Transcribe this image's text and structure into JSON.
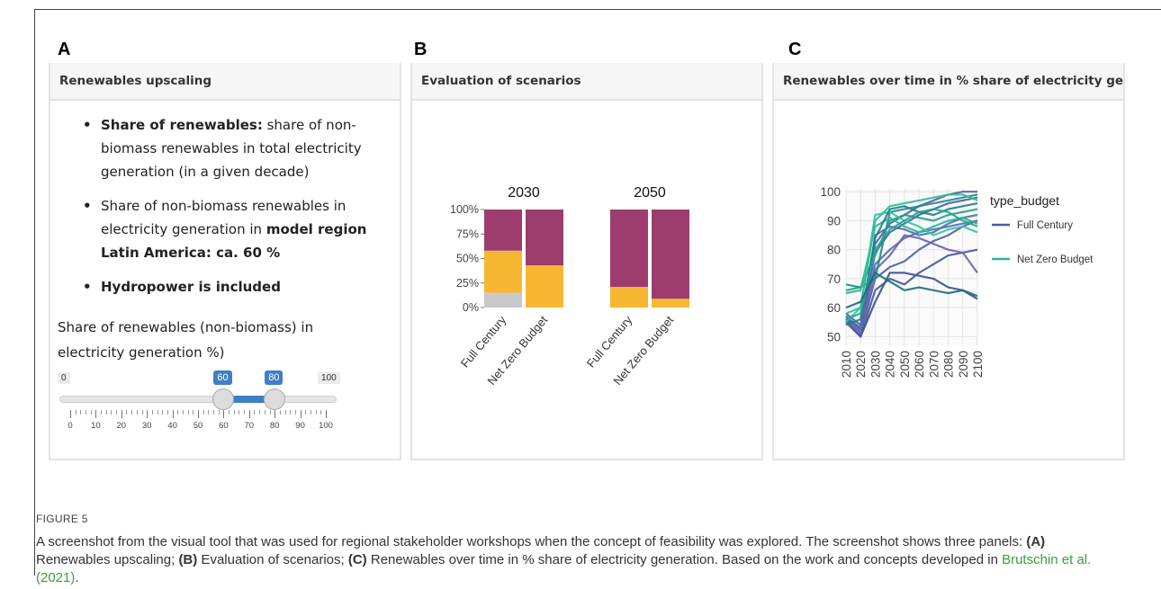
{
  "panels": {
    "A": {
      "letter": "A",
      "title": "Renewables upscaling",
      "bullets": [
        {
          "bold": "Share of renewables:",
          "text": " share of non-biomass renewables in total electricity generation (in a given decade)"
        },
        {
          "bold": "",
          "text": "Share of non-biomass renewables in electricity generation in ",
          "bold_end": "model region Latin America: ca. 60 %"
        },
        {
          "bold": "Hydropower is included",
          "text": ""
        }
      ],
      "slider": {
        "label": "Share of renewables (non-biomass) in electricity generation %)",
        "min_label": "0",
        "max_label": "100",
        "low_label": "60",
        "high_label": "80",
        "min": 0,
        "max": 100,
        "low": 60,
        "high": 80,
        "tick_labels": [
          "0",
          "10",
          "20",
          "30",
          "40",
          "50",
          "60",
          "70",
          "80",
          "90",
          "100"
        ]
      }
    },
    "B": {
      "letter": "B",
      "title": "Evaluation of scenarios"
    },
    "C": {
      "letter": "C",
      "title": "Renewables over time in % share of electricity generation"
    }
  },
  "chart_data": [
    {
      "type": "bar",
      "stacked": true,
      "facets": [
        "2030",
        "2050"
      ],
      "categories": [
        "Full Century",
        "Net Zero Budget"
      ],
      "y_tick_labels": [
        "100%",
        "75%",
        "50%",
        "25%",
        "0%"
      ],
      "ylim": [
        0,
        100
      ],
      "series": [
        {
          "color": "#c8c8c8",
          "values": {
            "2030": [
              15,
              0
            ],
            "2050": [
              0,
              0
            ]
          }
        },
        {
          "color": "#f7b733",
          "values": {
            "2030": [
              43,
              43
            ],
            "2050": [
              21,
              9
            ]
          }
        },
        {
          "color": "#9c3d6e",
          "values": {
            "2030": [
              42,
              57
            ],
            "2050": [
              79,
              91
            ]
          }
        }
      ]
    },
    {
      "type": "line",
      "x": [
        2010,
        2020,
        2030,
        2040,
        2050,
        2060,
        2070,
        2080,
        2090,
        2100
      ],
      "x_tick_labels": [
        "2010",
        "2020",
        "2030",
        "2040",
        "2050",
        "2060",
        "2070",
        "2080",
        "2090",
        "2100"
      ],
      "y_tick_labels": [
        "100",
        "90",
        "80",
        "70",
        "60",
        "50"
      ],
      "ylim": [
        47,
        101
      ],
      "legend_title": "type_budget",
      "legend": [
        {
          "label": "Full Century",
          "color": "#4a5a9a"
        },
        {
          "label": "Net Zero Budget",
          "color": "#2bb39a"
        }
      ],
      "series": [
        {
          "group": "Full Century",
          "color": "#3b4f8f",
          "values": [
            55,
            50,
            62,
            72,
            72,
            71,
            70,
            67,
            66,
            63
          ]
        },
        {
          "group": "Full Century",
          "color": "#45579c",
          "values": [
            55,
            50,
            66,
            70,
            68,
            72,
            75,
            78,
            79,
            80
          ]
        },
        {
          "group": "Full Century",
          "color": "#4f5fa6",
          "values": [
            56,
            51,
            70,
            74,
            76,
            80,
            83,
            85,
            88,
            90
          ]
        },
        {
          "group": "Full Century",
          "color": "#5a68ae",
          "values": [
            57,
            52,
            75,
            80,
            84,
            86,
            87,
            88,
            89,
            90
          ]
        },
        {
          "group": "Full Century",
          "color": "#3e62a8",
          "values": [
            56,
            53,
            79,
            86,
            89,
            92,
            94,
            96,
            97,
            98
          ]
        },
        {
          "group": "Full Century",
          "color": "#5d5a9f",
          "values": [
            58,
            54,
            82,
            89,
            92,
            95,
            97,
            99,
            100,
            100
          ]
        },
        {
          "group": "Full Century",
          "color": "#6a64a8",
          "values": [
            55,
            52,
            73,
            78,
            85,
            84,
            82,
            80,
            79,
            72
          ]
        },
        {
          "group": "Full Century",
          "color": "#4b6fb0",
          "values": [
            57,
            53,
            85,
            88,
            87,
            85,
            86,
            89,
            91,
            92
          ]
        },
        {
          "group": "Net Zero Budget",
          "color": "#1f8a8a",
          "values": [
            68,
            67,
            70,
            93,
            94,
            95,
            96,
            97,
            98,
            99
          ]
        },
        {
          "group": "Net Zero Budget",
          "color": "#21a088",
          "values": [
            66,
            67,
            78,
            90,
            92,
            91,
            90,
            92,
            93,
            94
          ]
        },
        {
          "group": "Net Zero Budget",
          "color": "#27b594",
          "values": [
            65,
            66,
            88,
            91,
            88,
            86,
            88,
            90,
            91,
            89
          ]
        },
        {
          "group": "Net Zero Budget",
          "color": "#32c4a0",
          "values": [
            55,
            60,
            92,
            93,
            90,
            88,
            85,
            87,
            88,
            86
          ]
        },
        {
          "group": "Net Zero Budget",
          "color": "#1e7f86",
          "values": [
            54,
            56,
            84,
            94,
            95,
            93,
            92,
            94,
            95,
            96
          ]
        },
        {
          "group": "Net Zero Budget",
          "color": "#26a48f",
          "values": [
            56,
            58,
            80,
            87,
            90,
            93,
            94,
            93,
            90,
            88
          ]
        },
        {
          "group": "Net Zero Budget",
          "color": "#2fbd9b",
          "values": [
            58,
            60,
            90,
            95,
            96,
            97,
            98,
            99,
            99,
            97
          ]
        },
        {
          "group": "Net Zero Budget",
          "color": "#1a6e7e",
          "values": [
            60,
            62,
            72,
            69,
            66,
            67,
            66,
            65,
            66,
            64
          ]
        }
      ]
    }
  ],
  "caption": {
    "figure": "FIGURE 5",
    "text_1": "A screenshot from the visual tool that was used for regional stakeholder workshops when the concept of feasibility was explored. The screenshot shows three panels: ",
    "a_bold": "(A)",
    "a_text": " Renewables upscaling; ",
    "b_bold": "(B)",
    "b_text": " Evaluation of scenarios; ",
    "c_bold": "(C)",
    "c_text": " Renewables over time in % share of electricity generation. Based on the work and concepts developed in ",
    "link": "Brutschin et al. (2021)",
    "end": "."
  }
}
